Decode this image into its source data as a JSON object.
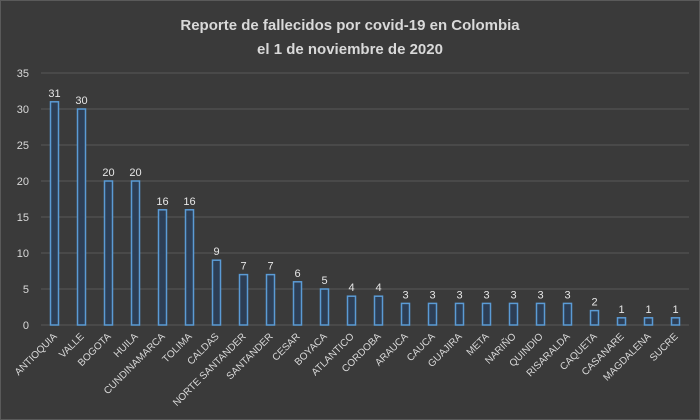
{
  "chart_data": {
    "type": "bar",
    "title_line1": "Reporte de fallecidos por covid-19 en Colombia",
    "title_line2": "el 1 de noviembre de 2020",
    "xlabel": "",
    "ylabel": "",
    "ylim": [
      0,
      35
    ],
    "yticks": [
      0,
      5,
      10,
      15,
      20,
      25,
      30,
      35
    ],
    "grid": true,
    "legend": "none",
    "categories": [
      "ANTIOQUIA",
      "VALLE",
      "BOGOTA",
      "HUILA",
      "CUNDINAMARCA",
      "TOLIMA",
      "CALDAS",
      "NORTE SANTANDER",
      "SANTANDER",
      "CESAR",
      "BOYACA",
      "ATLANTICO",
      "CORDOBA",
      "ARAUCA",
      "CAUCA",
      "GUAJIRA",
      "META",
      "NARIÑO",
      "QUINDIO",
      "RISARALDA",
      "CAQUETA",
      "CASANARE",
      "MAGDALENA",
      "SUCRE"
    ],
    "values": [
      31,
      30,
      20,
      20,
      16,
      16,
      9,
      7,
      7,
      6,
      5,
      4,
      4,
      3,
      3,
      3,
      3,
      3,
      3,
      3,
      2,
      1,
      1,
      1
    ],
    "colors": {
      "background": "#3a3a3a",
      "bar_fill": "#2d3e55",
      "bar_glow": "#5b9bd5",
      "grid": "#585858",
      "text": "#d9d9d9"
    }
  }
}
